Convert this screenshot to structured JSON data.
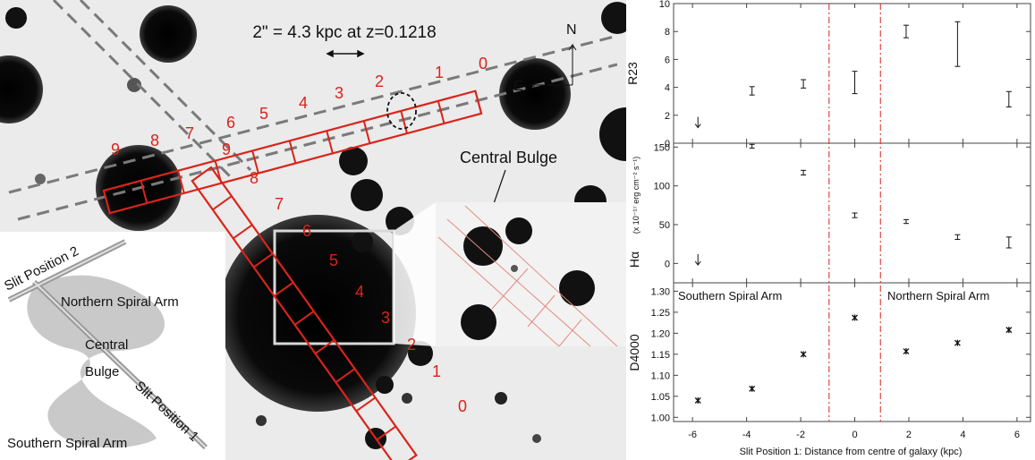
{
  "image": {
    "scale_label": "2\" = 4.3 kpc at z=0.1218",
    "compass": {
      "north": "N",
      "east": "E"
    },
    "central_bulge_label": "Central Bulge",
    "slit2_numbers": [
      "0",
      "1",
      "2",
      "3",
      "4",
      "5",
      "6",
      "7",
      "8",
      "9"
    ],
    "slit1_numbers": [
      "0",
      "1",
      "2",
      "3",
      "4",
      "5",
      "6",
      "7",
      "8",
      "9"
    ],
    "schematic": {
      "slit_position_2": "Slit Position 2",
      "northern_arm": "Northern Spiral Arm",
      "central": "Central",
      "bulge": "Bulge",
      "slit_position_1": "Slit Position 1",
      "southern_arm": "Southern Spiral Arm"
    }
  },
  "chart_data": [
    {
      "type": "scatter",
      "ylabel": "R23",
      "ylim": [
        0,
        10
      ],
      "yticks": [
        "0",
        "2",
        "4",
        "6",
        "8",
        "10"
      ],
      "points": [
        {
          "x": -5.8,
          "y": 1.5,
          "upper_limit": true
        },
        {
          "x": -3.8,
          "y": 3.75,
          "err": 0.3
        },
        {
          "x": -1.9,
          "y": 4.25,
          "err": 0.3
        },
        {
          "x": 0.0,
          "y": 4.35,
          "err": 0.8
        },
        {
          "x": 1.9,
          "y": 8.0,
          "err": 0.45
        },
        {
          "x": 3.8,
          "y": 7.1,
          "err": 1.6
        },
        {
          "x": 5.7,
          "y": 3.15,
          "err": 0.55
        }
      ]
    },
    {
      "type": "scatter",
      "ylabel": "Hα",
      "ylabel_units": "(x 10⁻¹⁷ erg cm⁻² s⁻¹)",
      "ylim": [
        -25,
        155
      ],
      "yticks": [
        "0",
        "50",
        "100",
        "150"
      ],
      "points": [
        {
          "x": -5.8,
          "y": 5,
          "upper_limit": true
        },
        {
          "x": -3.8,
          "y": 151,
          "err": 2.5
        },
        {
          "x": -1.9,
          "y": 117,
          "err": 3
        },
        {
          "x": 0.0,
          "y": 62,
          "err": 3
        },
        {
          "x": 1.9,
          "y": 54,
          "err": 2.5
        },
        {
          "x": 3.8,
          "y": 34,
          "err": 3
        },
        {
          "x": 5.7,
          "y": 27,
          "err": 7
        }
      ]
    },
    {
      "type": "scatter",
      "ylabel": "D4000",
      "xlabel": "Slit Position 1: Distance from centre of galaxy (kpc)",
      "ylim": [
        0.99,
        1.32
      ],
      "yticks": [
        "1.00",
        "1.05",
        "1.10",
        "1.15",
        "1.20",
        "1.25",
        "1.30"
      ],
      "xticks": [
        "-6",
        "-4",
        "-2",
        "0",
        "2",
        "4",
        "6"
      ],
      "xlim": [
        -6.7,
        6.5
      ],
      "annotations": [
        "Southern Spiral Arm",
        "Northern Spiral Arm"
      ],
      "points": [
        {
          "x": -5.8,
          "y": 1.04
        },
        {
          "x": -3.8,
          "y": 1.068
        },
        {
          "x": -1.9,
          "y": 1.15
        },
        {
          "x": 0.0,
          "y": 1.237
        },
        {
          "x": 1.9,
          "y": 1.157
        },
        {
          "x": 3.8,
          "y": 1.177
        },
        {
          "x": 5.7,
          "y": 1.208
        }
      ]
    }
  ],
  "colors": {
    "slit": "#d9241a",
    "dashdot": "#d9241a",
    "panel_bg": "#e9e9e9",
    "blob": "#0a0a0a",
    "spiral": "#c9c9c9"
  }
}
